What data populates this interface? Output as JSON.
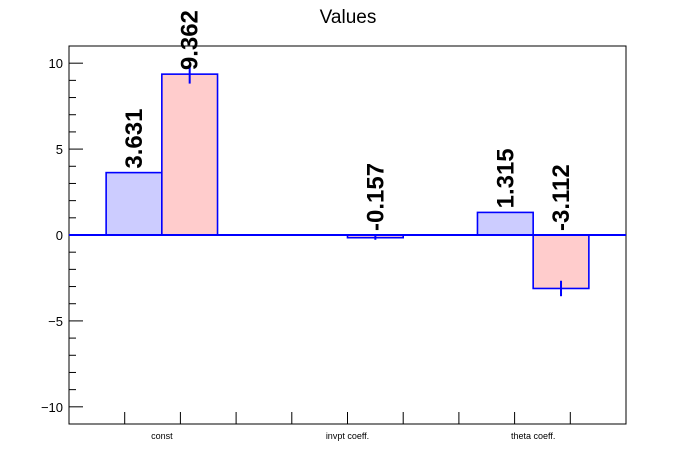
{
  "chart_data": {
    "type": "bar",
    "title": "Values",
    "xlabel": "",
    "ylabel": "",
    "categories": [
      "const",
      "invpt coeff.",
      "theta coeff."
    ],
    "ylim": [
      -11.0,
      11.0
    ],
    "yticks": [
      -10,
      -5,
      0,
      5,
      10
    ],
    "ytick_labels": [
      "−10",
      "−5",
      "0",
      "5",
      "10"
    ],
    "grid": false,
    "legend": "none",
    "series": [
      {
        "values": [
          3.631,
          null,
          1.315
        ],
        "labels": [
          "3.631",
          "",
          "1.315"
        ],
        "color": "#ccccff"
      },
      {
        "values": [
          9.362,
          -0.157,
          -3.112
        ],
        "errors": [
          0.55,
          0.12,
          0.45
        ],
        "labels": [
          "9.362",
          "-0.157",
          "-3.112"
        ],
        "color": "#ffcccc"
      }
    ],
    "edge_color": "#0000ff",
    "zero_line": true
  }
}
